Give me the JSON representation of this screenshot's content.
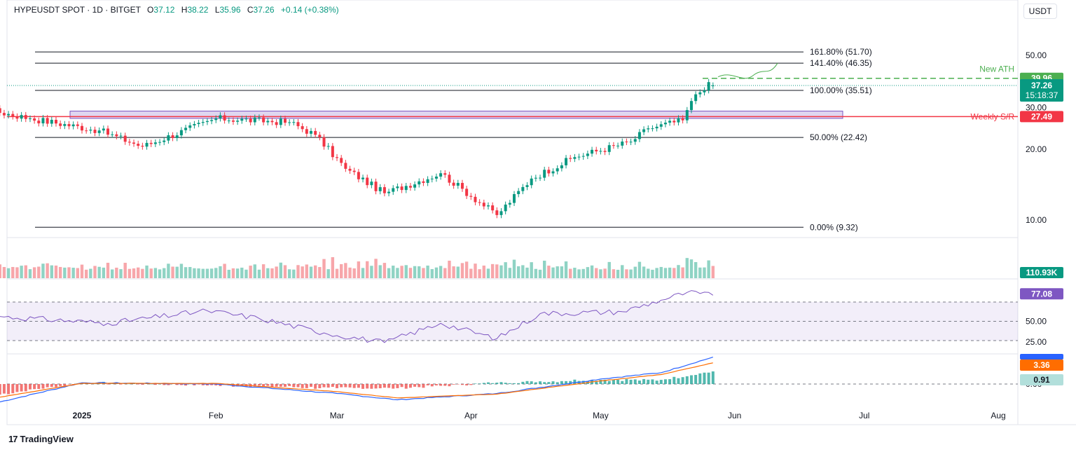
{
  "header": {
    "symbol": "HYPEUSDT SPOT · 1D · BITGET",
    "open_label": "O",
    "open": "37.12",
    "high_label": "H",
    "high": "38.22",
    "low_label": "L",
    "low": "35.96",
    "close_label": "C",
    "close": "37.26",
    "change": "+0.14 (+0.38%)"
  },
  "currency": "USDT",
  "branding": "TradingView",
  "colors": {
    "up": "#089981",
    "down": "#f23645",
    "volume_up": "#8fd3c4",
    "volume_down": "#f7a6aa",
    "rsi": "#7e57c2",
    "macd": "#2962ff",
    "signal": "#ff6d00",
    "weekly_sr": "#f23645",
    "ath": "#4caf50"
  },
  "chart_data": [
    {
      "type": "candlestick",
      "title": "",
      "x_ticks": [
        "2025",
        "Feb",
        "Mar",
        "Apr",
        "May",
        "Jun",
        "Jul",
        "Aug"
      ],
      "y_ticks": [
        "10.00",
        "20.00",
        "30.00",
        "50.00"
      ],
      "y_range": [
        7.5,
        60
      ],
      "log_scale": true,
      "series_note": "daily OHLC, 2024-11-29 to 2025-05-27",
      "anchor_points": [
        {
          "date": "2024-11-29",
          "close": 9.3
        },
        {
          "date": "2024-12-06",
          "close": 30.5
        },
        {
          "date": "2024-12-20",
          "close": 27.0
        },
        {
          "date": "2025-01-05",
          "close": 24.0
        },
        {
          "date": "2025-01-15",
          "close": 20.5
        },
        {
          "date": "2025-02-01",
          "close": 27.0
        },
        {
          "date": "2025-02-18",
          "close": 26.0
        },
        {
          "date": "2025-02-24",
          "close": 23.0
        },
        {
          "date": "2025-03-03",
          "close": 16.5
        },
        {
          "date": "2025-03-12",
          "close": 13.0
        },
        {
          "date": "2025-03-25",
          "close": 15.8
        },
        {
          "date": "2025-04-07",
          "close": 10.5
        },
        {
          "date": "2025-04-15",
          "close": 15.0
        },
        {
          "date": "2025-04-25",
          "close": 18.5
        },
        {
          "date": "2025-05-08",
          "close": 21.5
        },
        {
          "date": "2025-05-12",
          "close": 24.5
        },
        {
          "date": "2025-05-20",
          "close": 26.5
        },
        {
          "date": "2025-05-22",
          "close": 32.0
        },
        {
          "date": "2025-05-26",
          "close": 38.5
        },
        {
          "date": "2025-05-27",
          "open": 37.12,
          "high": 38.22,
          "low": 35.96,
          "close": 37.26
        }
      ],
      "fibonacci": [
        {
          "label": "161.80% (51.70)",
          "value": 51.7
        },
        {
          "label": "141.40% (46.35)",
          "value": 46.35
        },
        {
          "label": "100.00% (35.51)",
          "value": 35.51
        },
        {
          "label": "50.00% (22.42)",
          "value": 22.42
        },
        {
          "label": "0.00% (9.32)",
          "value": 9.32
        }
      ],
      "weekly_sr": {
        "label": "Weekly S/R",
        "value": 27.49,
        "zone": [
          27.0,
          29.0
        ]
      },
      "ath": {
        "label": "New ATH",
        "value": 39.96,
        "badge": "39.96"
      },
      "last_price": {
        "value": "37.26",
        "countdown": "15:18:37"
      }
    },
    {
      "type": "bar",
      "name": "Volume",
      "last_value_label": "110.93K"
    },
    {
      "type": "line",
      "name": "RSI",
      "y_ticks": [
        "25.00",
        "50.00"
      ],
      "levels": [
        30,
        50,
        70
      ],
      "value_label": "77.08",
      "anchor_points": [
        {
          "date": "2024-12-13",
          "value": 55
        },
        {
          "date": "2025-01-07",
          "value": 48
        },
        {
          "date": "2025-01-30",
          "value": 61
        },
        {
          "date": "2025-02-11",
          "value": 53
        },
        {
          "date": "2025-02-26",
          "value": 38
        },
        {
          "date": "2025-03-12",
          "value": 28
        },
        {
          "date": "2025-03-25",
          "value": 48
        },
        {
          "date": "2025-04-07",
          "value": 32
        },
        {
          "date": "2025-04-17",
          "value": 58
        },
        {
          "date": "2025-05-06",
          "value": 60
        },
        {
          "date": "2025-05-15",
          "value": 72
        },
        {
          "date": "2025-05-21",
          "value": 80
        },
        {
          "date": "2025-05-27",
          "value": 77.08
        }
      ]
    },
    {
      "type": "line",
      "name": "MACD",
      "y_ticks": [
        "0.00"
      ],
      "signal_label": "3.36",
      "histogram_label": "0.91",
      "anchor_points": [
        {
          "date": "2024-12-12",
          "macd": -3.0,
          "signal": -2.2
        },
        {
          "date": "2025-01-01",
          "macd": 0.2,
          "signal": 0.1
        },
        {
          "date": "2025-02-01",
          "macd": 0.0,
          "signal": 0.1
        },
        {
          "date": "2025-03-01",
          "macd": -1.5,
          "signal": -1.2
        },
        {
          "date": "2025-03-15",
          "macd": -2.5,
          "signal": -2.2
        },
        {
          "date": "2025-04-07",
          "macd": -1.5,
          "signal": -1.6
        },
        {
          "date": "2025-05-01",
          "macd": 0.8,
          "signal": 0.5
        },
        {
          "date": "2025-05-15",
          "macd": 1.8,
          "signal": 1.5
        },
        {
          "date": "2025-05-27",
          "macd": 4.27,
          "signal": 3.36
        }
      ]
    }
  ]
}
